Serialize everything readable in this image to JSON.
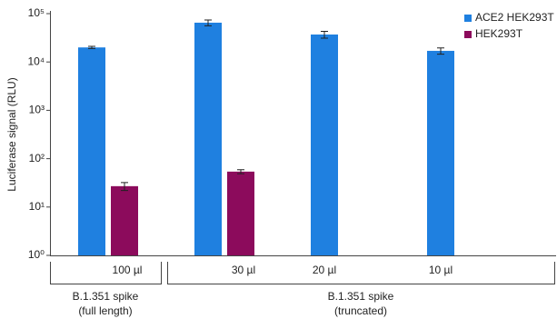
{
  "chart_data": {
    "type": "bar",
    "ylabel": "Luciferase signal (RLU)",
    "log_scale": true,
    "ylim": [
      1,
      100000
    ],
    "yticks": [
      {
        "value": 1,
        "label": "10⁰"
      },
      {
        "value": 10,
        "label": "10¹"
      },
      {
        "value": 100,
        "label": "10²"
      },
      {
        "value": 1000,
        "label": "10³"
      },
      {
        "value": 10000,
        "label": "10⁴"
      },
      {
        "value": 100000,
        "label": "10⁵"
      }
    ],
    "categories": [
      "100 µl",
      "30 µl",
      "20 µl",
      "10 µl"
    ],
    "group_labels": [
      [
        "B.1.351 spike",
        "(full length)"
      ],
      [
        "B.1.351 spike",
        "(truncated)"
      ]
    ],
    "legend": "top-right",
    "series": [
      {
        "name": "ACE2 HEK293T",
        "color": "#1f80e0",
        "values": [
          20000,
          65000,
          37000,
          17000
        ],
        "errors": [
          1000,
          9000,
          6000,
          2500
        ]
      },
      {
        "name": "HEK293T",
        "color": "#8c0b5c",
        "values": [
          27,
          54,
          null,
          null
        ],
        "errors": [
          5,
          5,
          null,
          null
        ]
      }
    ]
  }
}
